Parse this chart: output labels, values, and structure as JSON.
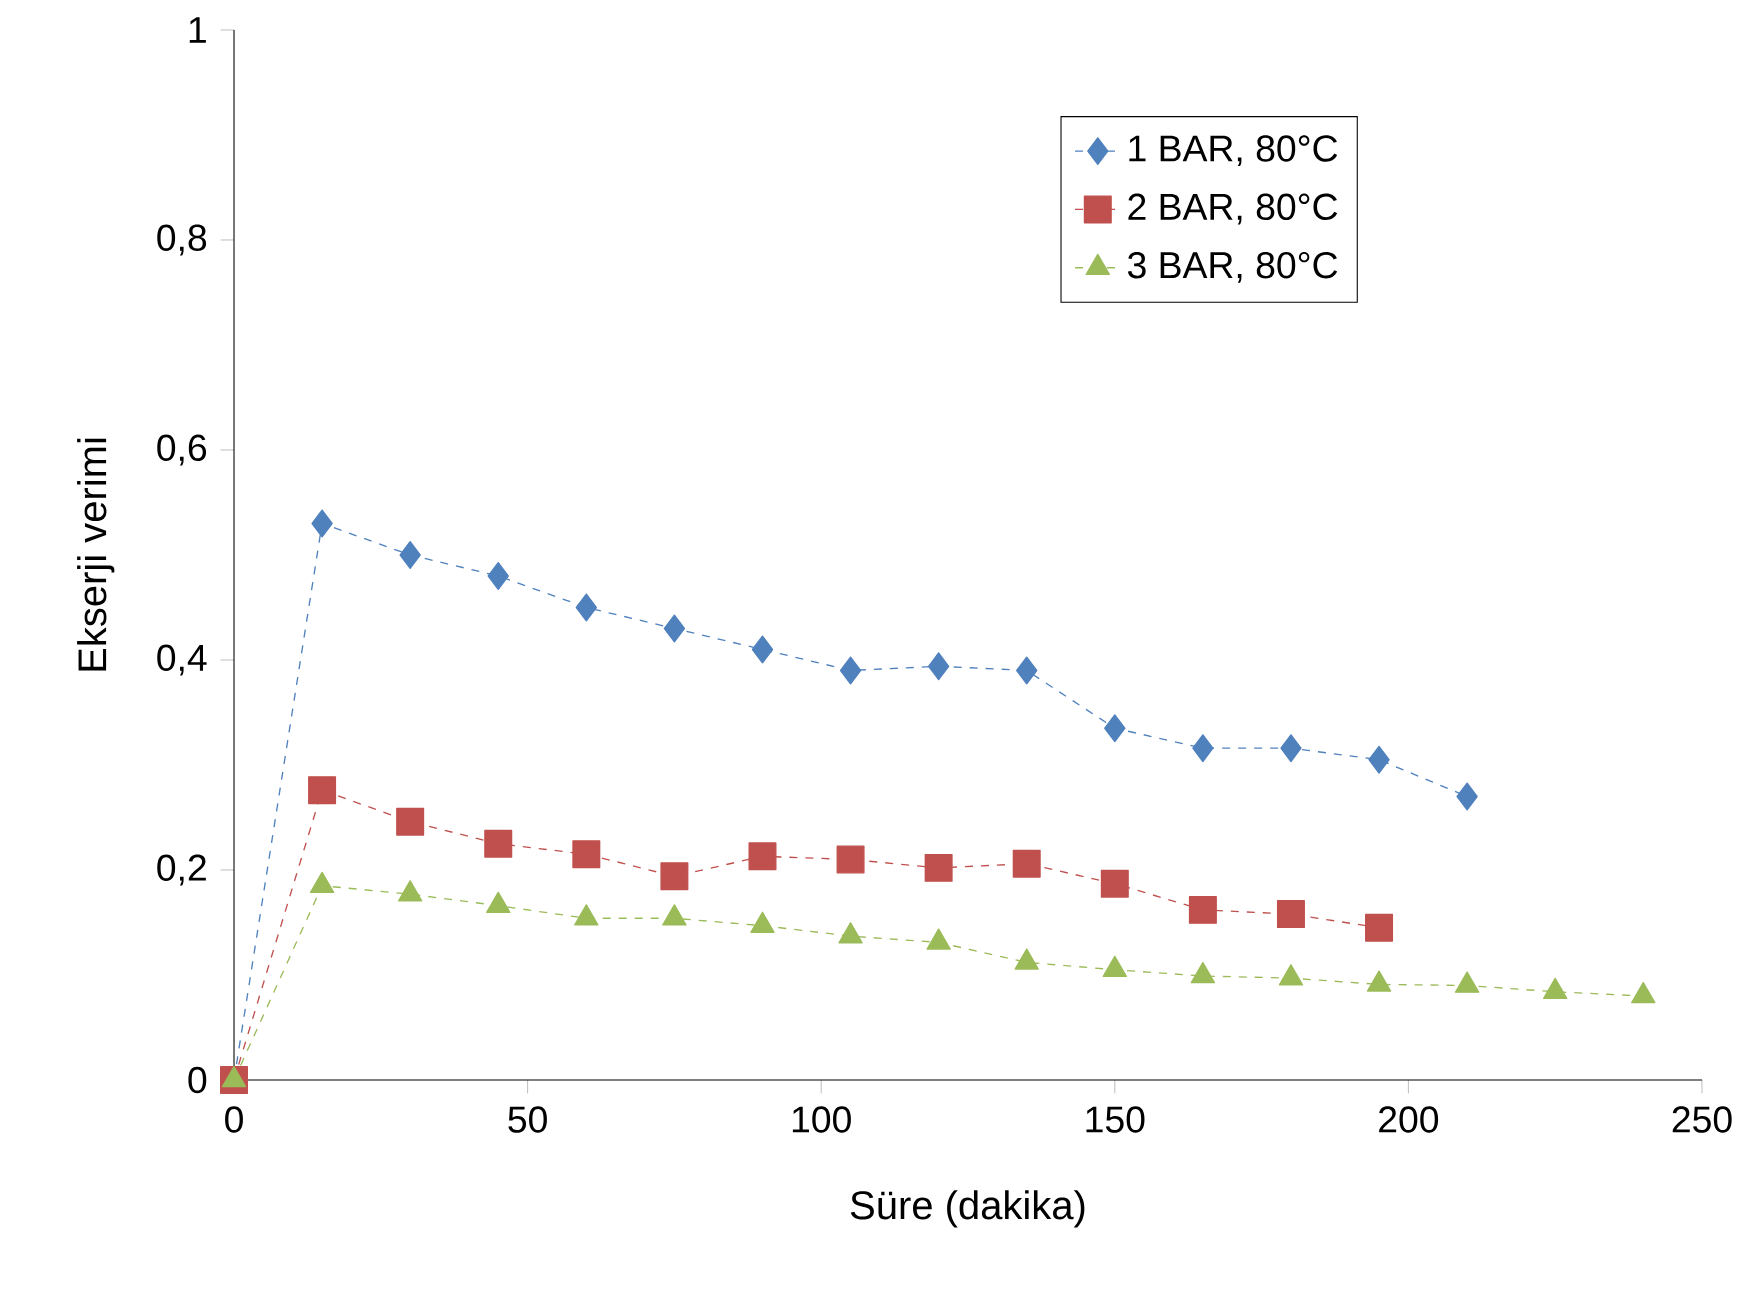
{
  "chart_data": {
    "type": "line",
    "xlabel": "Süre (dakika)",
    "ylabel": "Ekserji  verimi",
    "x": [
      0,
      15,
      30,
      45,
      60,
      75,
      90,
      105,
      120,
      135,
      150,
      165,
      180,
      195,
      210,
      225,
      240
    ],
    "series": [
      {
        "name": "1 BAR, 80°C",
        "color": "#4f81bd",
        "marker": "diamond",
        "values": [
          0,
          0.53,
          0.5,
          0.48,
          0.45,
          0.43,
          0.41,
          0.39,
          0.394,
          0.39,
          0.335,
          0.316,
          0.316,
          0.305,
          0.27,
          null,
          null
        ]
      },
      {
        "name": "2 BAR, 80°C",
        "color": "#c0504d",
        "marker": "square",
        "values": [
          0,
          0.276,
          0.246,
          0.225,
          0.215,
          0.194,
          0.213,
          0.21,
          0.202,
          0.206,
          0.187,
          0.162,
          0.158,
          0.145,
          null,
          null,
          null
        ]
      },
      {
        "name": "3 BAR, 80°C",
        "color": "#9bbb59",
        "marker": "triangle",
        "values": [
          0,
          0.185,
          0.177,
          0.166,
          0.154,
          0.154,
          0.147,
          0.137,
          0.131,
          0.112,
          0.105,
          0.099,
          0.097,
          0.091,
          0.09,
          0.084,
          0.08
        ]
      }
    ],
    "xlim": [
      0,
      250
    ],
    "ylim": [
      0,
      1
    ],
    "xticks": [
      0,
      50,
      100,
      150,
      200,
      250
    ],
    "yticks": [
      0,
      {
        "value": 0.2,
        "label": "0,2"
      },
      {
        "value": 0.4,
        "label": "0,4"
      },
      {
        "value": 0.6,
        "label": "0,6"
      },
      {
        "value": 0.8,
        "label": "0,8"
      },
      1
    ],
    "line_style": "dashed",
    "legend": "top right"
  }
}
